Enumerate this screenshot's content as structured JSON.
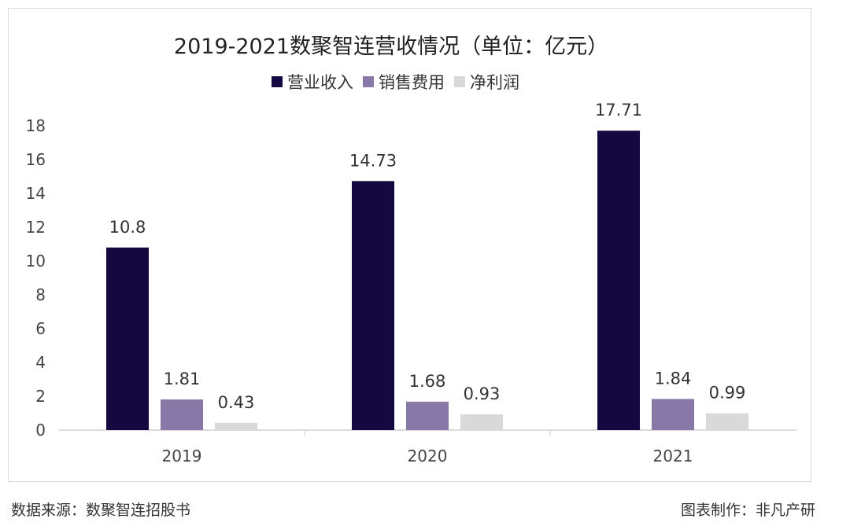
{
  "chart_data": {
    "type": "bar",
    "title": "2019-2021数聚智连营收情况（单位：亿元）",
    "categories": [
      "2019",
      "2020",
      "2021"
    ],
    "series": [
      {
        "name": "营业收入",
        "values": [
          10.8,
          14.73,
          17.71
        ],
        "color": "#150840"
      },
      {
        "name": "销售费用",
        "values": [
          1.81,
          1.68,
          1.84
        ],
        "color": "#8878a8"
      },
      {
        "name": "净利润",
        "values": [
          0.43,
          0.93,
          0.99
        ],
        "color": "#d9d9d9"
      }
    ],
    "data_labels": [
      [
        "10.8",
        "14.73",
        "17.71"
      ],
      [
        "1.81",
        "1.68",
        "1.84"
      ],
      [
        "0.43",
        "0.93",
        "0.99"
      ]
    ],
    "yticks": [
      "0",
      "2",
      "4",
      "6",
      "8",
      "10",
      "12",
      "14",
      "16",
      "18"
    ],
    "ylim": [
      0,
      18
    ],
    "grid": false,
    "legend": "top"
  },
  "footer": {
    "source": "数据来源：数聚智连招股书",
    "credit": "图表制作：非凡产研"
  }
}
